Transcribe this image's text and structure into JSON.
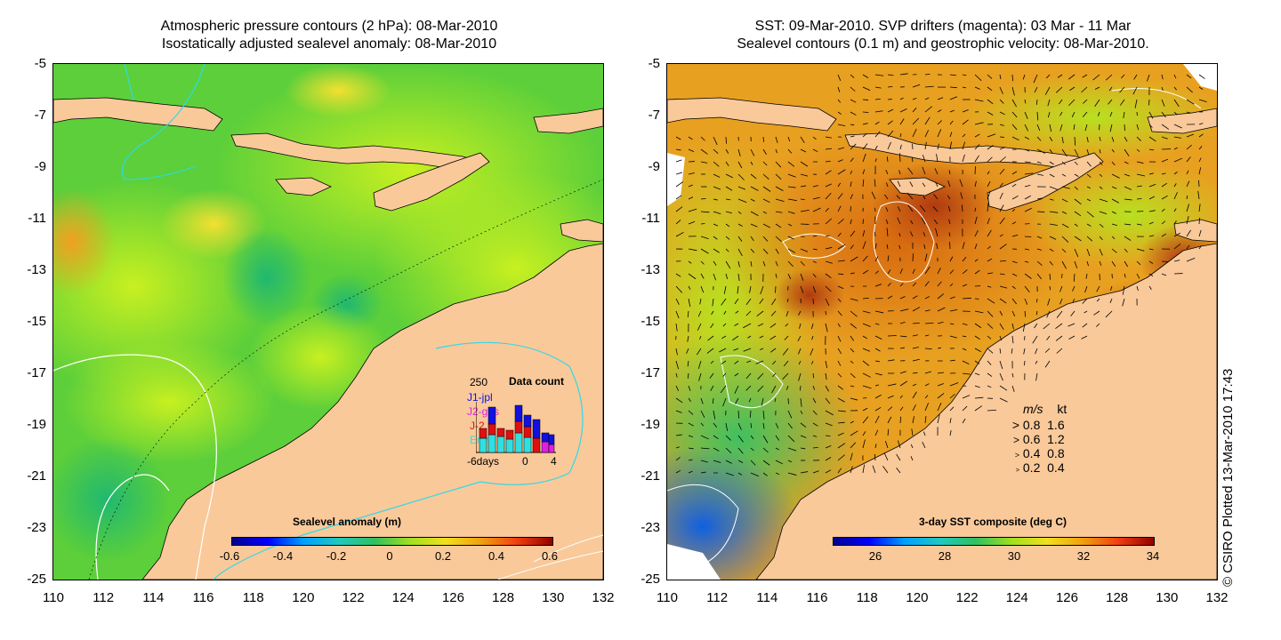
{
  "left_panel": {
    "title_line1": "Atmospheric pressure contours (2 hPa): 08-Mar-2010",
    "title_line2": "Isostatically adjusted sealevel anomaly: 08-Mar-2010",
    "colorbar": {
      "title": "Sealevel anomaly (m)",
      "labels": [
        "-0.6",
        "-0.4",
        "-0.2",
        "0",
        "0.2",
        "0.4",
        "0.6"
      ]
    },
    "data_count_inset": {
      "title": "Data count",
      "max_label": "250",
      "series": [
        {
          "name": "J1-jpl",
          "color": "#1010e0"
        },
        {
          "name": "J2-gps",
          "color": "#e020e0"
        },
        {
          "name": "J-2",
          "color": "#e01010"
        },
        {
          "name": "Envi",
          "color": "#30e0e0"
        }
      ],
      "x_labels": [
        "-6days",
        "0",
        "4"
      ]
    }
  },
  "right_panel": {
    "title_line1": "SST: 09-Mar-2010. SVP drifters (magenta): 03 Mar - 11 Mar",
    "title_line2": "Sealevel contours (0.1 m) and geostrophic velocity: 08-Mar-2010.",
    "colorbar": {
      "title": "3-day SST composite (deg C)",
      "labels": [
        "26",
        "28",
        "30",
        "32",
        "34"
      ]
    },
    "velocity_legend": {
      "header_ms": "m/s",
      "header_kt": "kt",
      "rows": [
        {
          "ms": "0.8",
          "kt": "1.6"
        },
        {
          "ms": "0.6",
          "kt": "1.2"
        },
        {
          "ms": "0.4",
          "kt": "0.8"
        },
        {
          "ms": "0.2",
          "kt": "0.4"
        }
      ]
    }
  },
  "axes": {
    "y_ticks": [
      "-5",
      "-7",
      "-9",
      "-11",
      "-13",
      "-15",
      "-17",
      "-19",
      "-21",
      "-23",
      "-25"
    ],
    "x_ticks": [
      "110",
      "112",
      "114",
      "116",
      "118",
      "120",
      "122",
      "124",
      "126",
      "128",
      "130",
      "132"
    ]
  },
  "copyright": "© CSIRO Plotted 13-Mar-2010 17:43",
  "colors": {
    "land": "#f9c99a",
    "contour_cyan": "#30d8e8",
    "contour_white": "#ffffff"
  }
}
